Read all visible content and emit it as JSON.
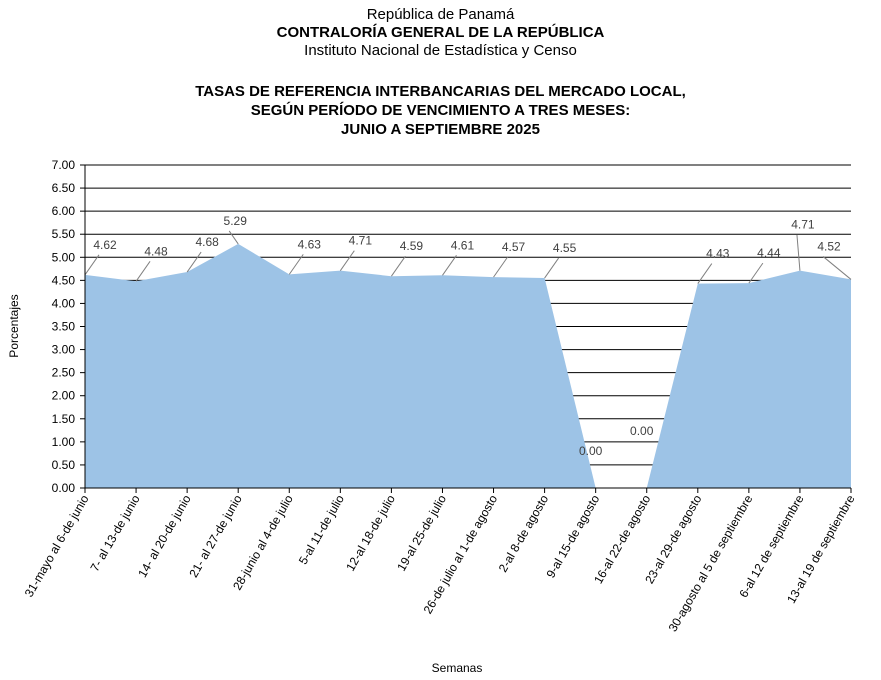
{
  "header": {
    "country": "República de Panamá",
    "institution": "CONTRALORÍA GENERAL DE LA REPÚBLICA",
    "institute": "Instituto  Nacional de Estadística y Censo"
  },
  "chart_data": {
    "type": "area",
    "title": [
      "TASAS DE REFERENCIA INTERBANCARIAS DEL MERCADO LOCAL,",
      "SEGÚN PERÍODO DE VENCIMIENTO A TRES MESES:",
      "JUNIO A  SEPTIEMBRE 2025"
    ],
    "xlabel": "Semanas",
    "ylabel": "Porcentajes",
    "ylim": [
      0,
      7
    ],
    "yticks": [
      "0.00",
      "0.50",
      "1.00",
      "1.50",
      "2.00",
      "2.50",
      "3.00",
      "3.50",
      "4.00",
      "4.50",
      "5.00",
      "5.50",
      "6.00",
      "6.50",
      "7.00"
    ],
    "grid": true,
    "fill_color": "#9dc3e6",
    "categories": [
      "31-mayo al 6-de junio",
      "7- al 13-de junio",
      "14- al 20-de junio",
      "21- al 27-de junio",
      "28-junio al 4-de julio",
      "5-al 11-de julio",
      "12-al 18-de julio",
      "19-al 25-de julio",
      "26-de julio al 1-de agosto",
      "2-al 8-de agosto",
      "9-al 15-de agosto",
      "16-al 22-de agosto",
      "23-al 29-de agosto",
      "30-agosto al 5 de septiembre",
      "6-al 12 de septiembre",
      "13-al 19 de septiembre"
    ],
    "values": [
      4.62,
      4.48,
      4.68,
      5.29,
      4.63,
      4.71,
      4.59,
      4.61,
      4.57,
      4.55,
      0.0,
      0.0,
      4.43,
      4.44,
      4.71,
      4.52
    ],
    "value_labels": [
      "4.62",
      "4.48",
      "4.68",
      "5.29",
      "4.63",
      "4.71",
      "4.59",
      "4.61",
      "4.57",
      "4.55",
      "0.00",
      "0.00",
      "4.43",
      "4.44",
      "4.71",
      "4.52"
    ]
  }
}
